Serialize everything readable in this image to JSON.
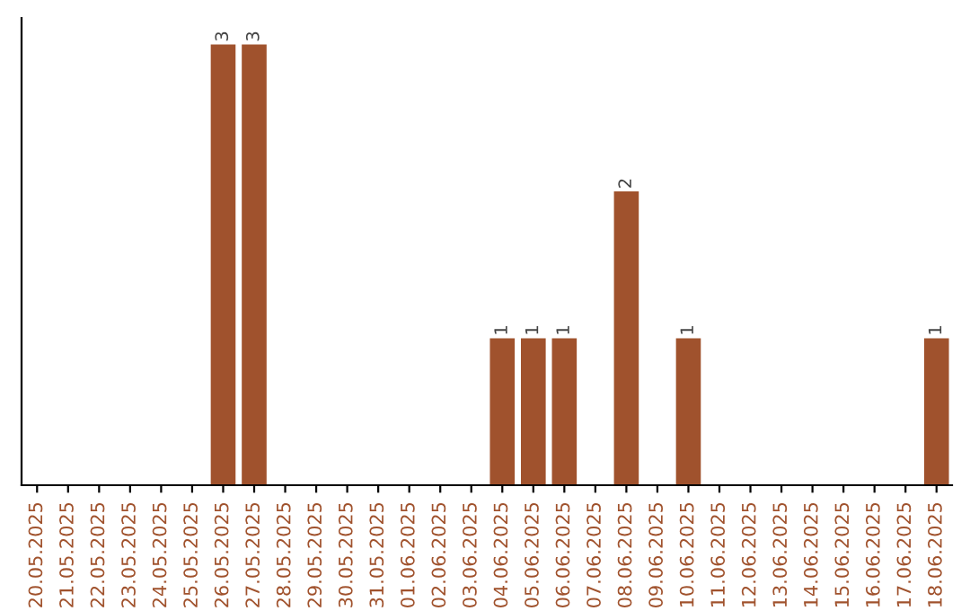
{
  "chart_data": {
    "type": "bar",
    "categories": [
      "20.05.2025",
      "21.05.2025",
      "22.05.2025",
      "23.05.2025",
      "24.05.2025",
      "25.05.2025",
      "26.05.2025",
      "27.05.2025",
      "28.05.2025",
      "29.05.2025",
      "30.05.2025",
      "31.05.2025",
      "01.06.2025",
      "02.06.2025",
      "03.06.2025",
      "04.06.2025",
      "05.06.2025",
      "06.06.2025",
      "07.06.2025",
      "08.06.2025",
      "09.06.2025",
      "10.06.2025",
      "11.06.2025",
      "12.06.2025",
      "13.06.2025",
      "14.06.2025",
      "15.06.2025",
      "16.06.2025",
      "17.06.2025",
      "18.06.2025"
    ],
    "values": [
      0,
      0,
      0,
      0,
      0,
      0,
      3,
      3,
      0,
      0,
      0,
      0,
      0,
      0,
      0,
      1,
      1,
      1,
      0,
      2,
      0,
      1,
      0,
      0,
      0,
      0,
      0,
      0,
      0,
      1
    ],
    "value_labels": [
      null,
      null,
      null,
      null,
      null,
      null,
      "3",
      "3",
      null,
      null,
      null,
      null,
      null,
      null,
      null,
      "1",
      "1",
      "1",
      null,
      "2",
      null,
      "1",
      null,
      null,
      null,
      null,
      null,
      null,
      null,
      "1"
    ],
    "color": "#a0522d",
    "grid": false,
    "legend": false,
    "tick_labels": "x"
  }
}
